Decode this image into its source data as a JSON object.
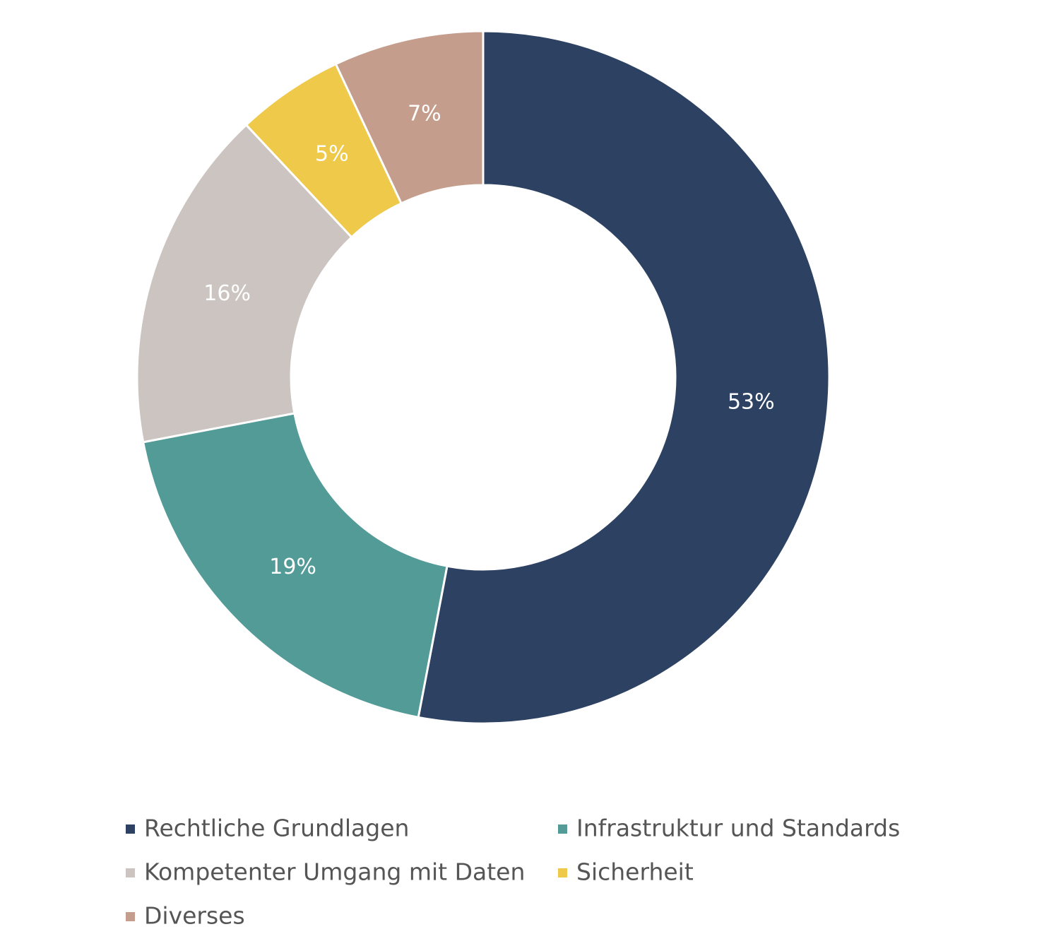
{
  "chart_data": {
    "type": "donut",
    "categories": [
      "Rechtliche Grundlagen",
      "Infrastruktur und Standards",
      "Kompetenter Umgang mit Daten",
      "Sicherheit",
      "Diverses"
    ],
    "values": [
      53,
      19,
      16,
      5,
      7
    ],
    "value_labels": [
      "53%",
      "19%",
      "16%",
      "5%",
      "7%"
    ],
    "colors": [
      "#2d4262",
      "#539b97",
      "#cbc4c1",
      "#eec94a",
      "#c49d8c"
    ]
  }
}
